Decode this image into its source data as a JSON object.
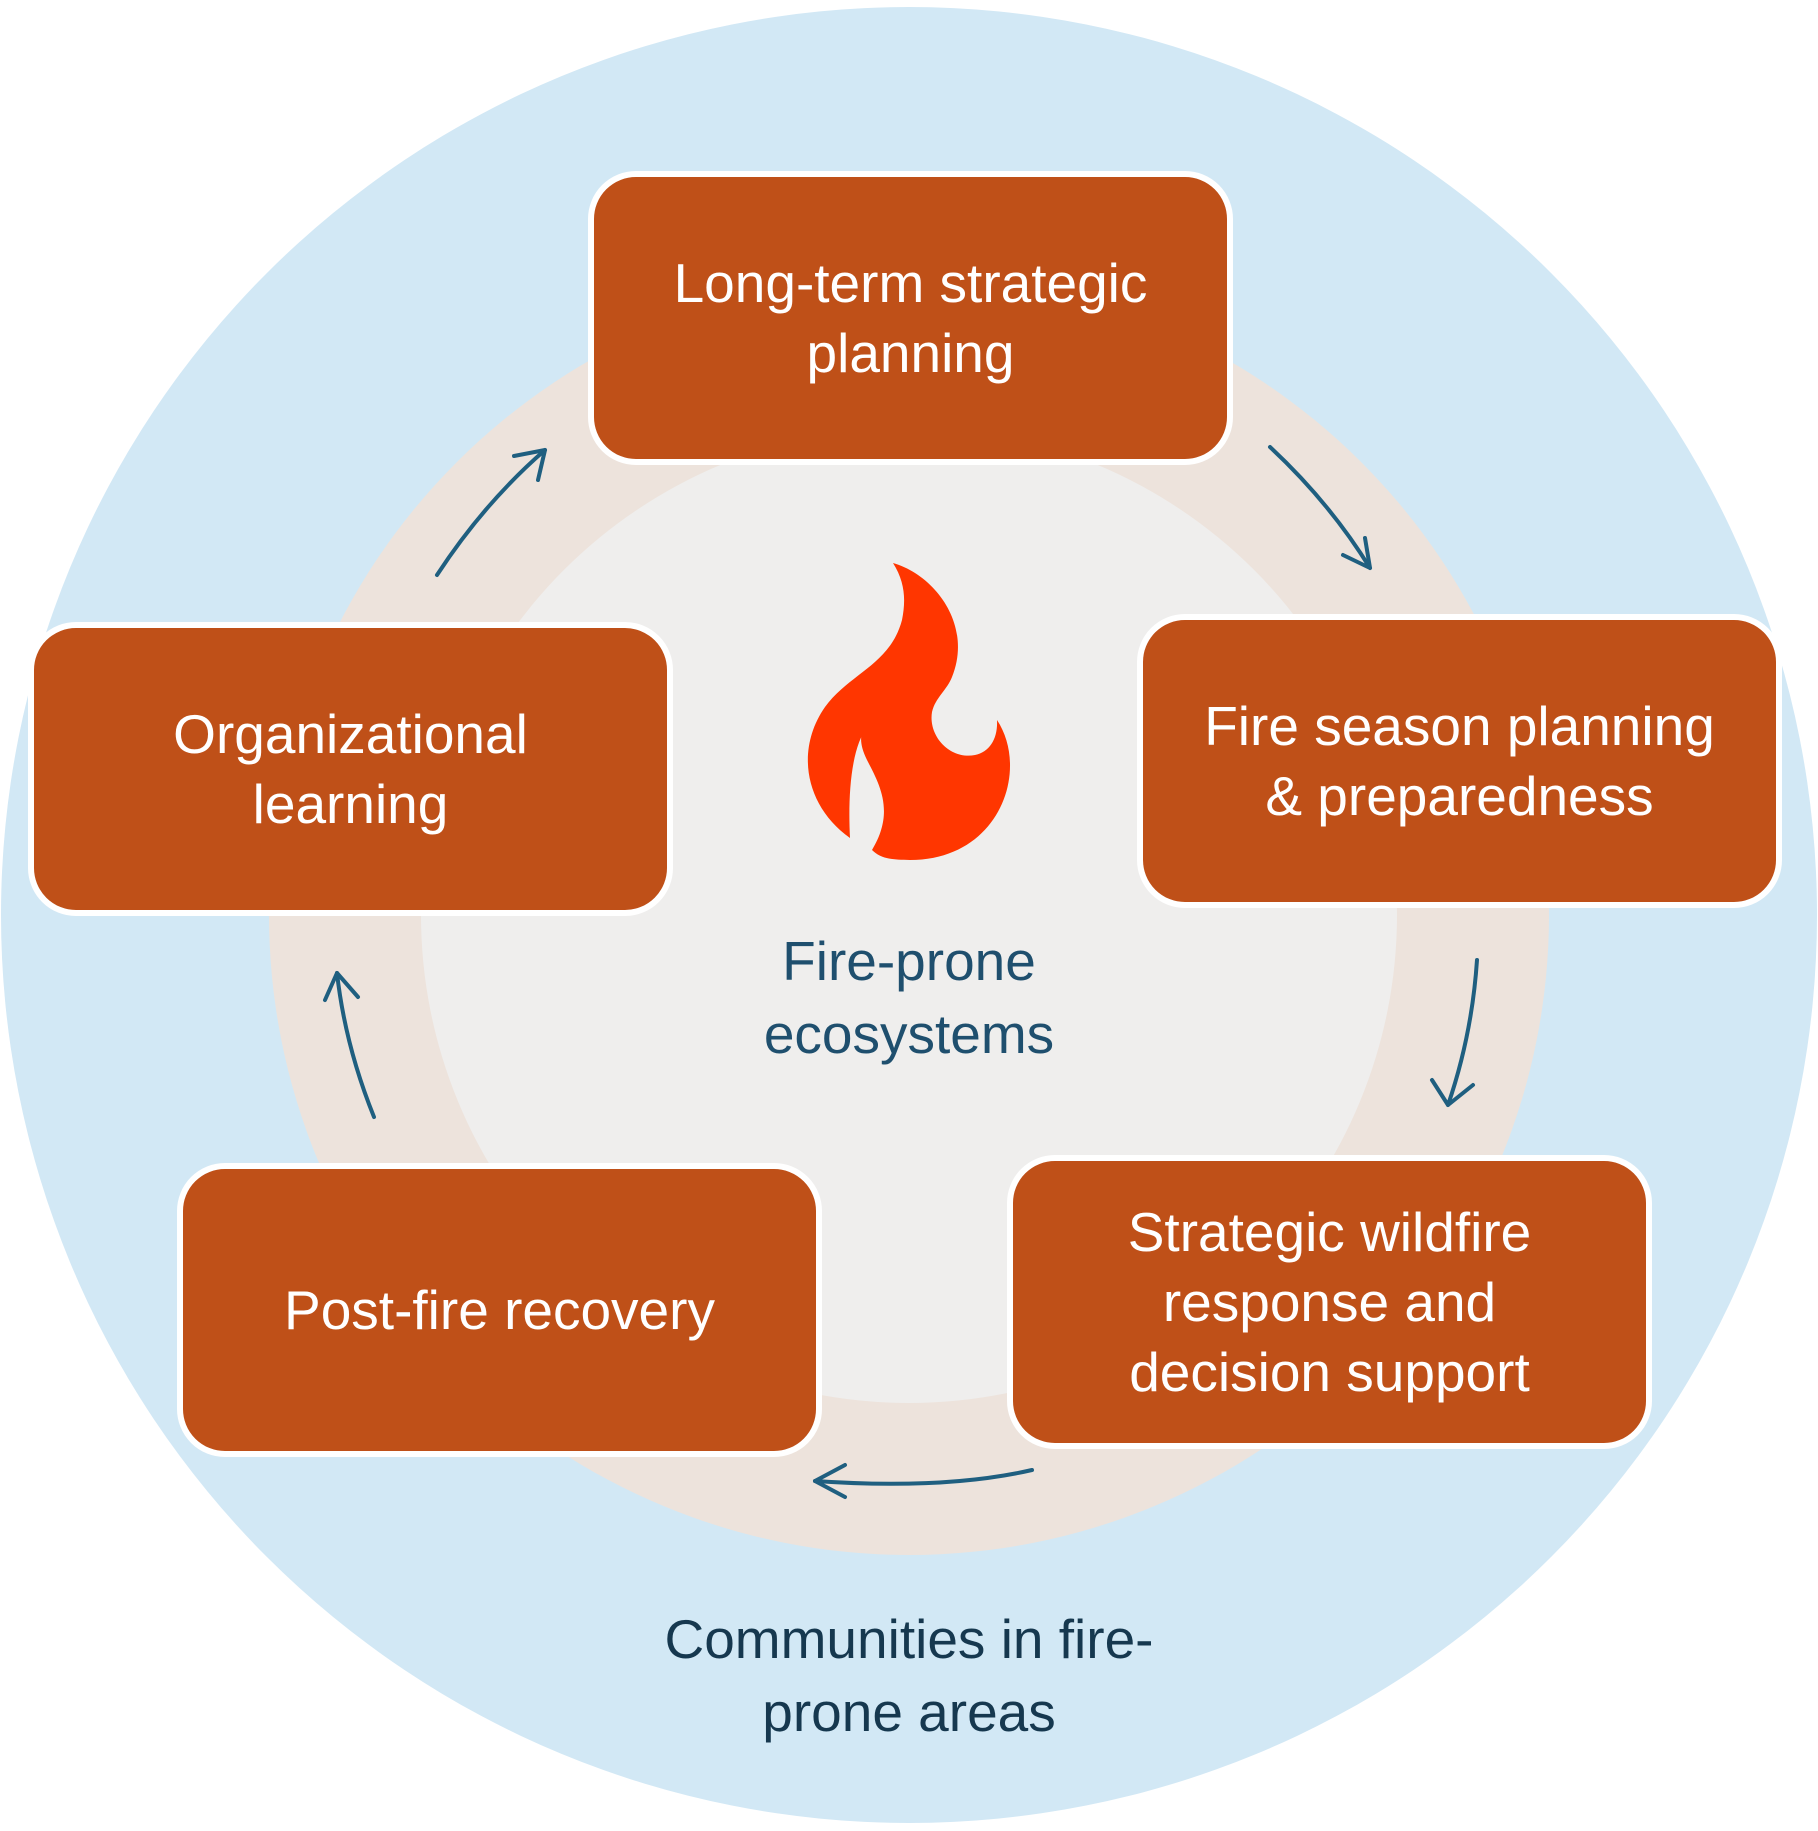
{
  "colors": {
    "outer_circle": "#d2e8f5",
    "ring": "#ede3dc",
    "center_disc": "#efeeed",
    "stage_fill": "#bf5018",
    "stage_border": "#ffffff",
    "stage_text": "#ffffff",
    "arrow": "#1f5f80",
    "flame": "#ff3600",
    "center_text": "#1f4f6e",
    "outer_text": "#16384f"
  },
  "icons": {
    "center": "flame-icon",
    "connector": "curved-arrow-icon"
  },
  "center": {
    "label": "Fire-prone\necosystems"
  },
  "outer": {
    "label": "Communities in fire-\nprone areas"
  },
  "cycle": {
    "direction": "clockwise",
    "stages": [
      {
        "label": "Long-term strategic\nplanning"
      },
      {
        "label": "Fire season planning\n& preparedness"
      },
      {
        "label": "Strategic wildfire\nresponse and\ndecision support"
      },
      {
        "label": "Post-fire recovery"
      },
      {
        "label": "Organizational\nlearning"
      }
    ]
  }
}
